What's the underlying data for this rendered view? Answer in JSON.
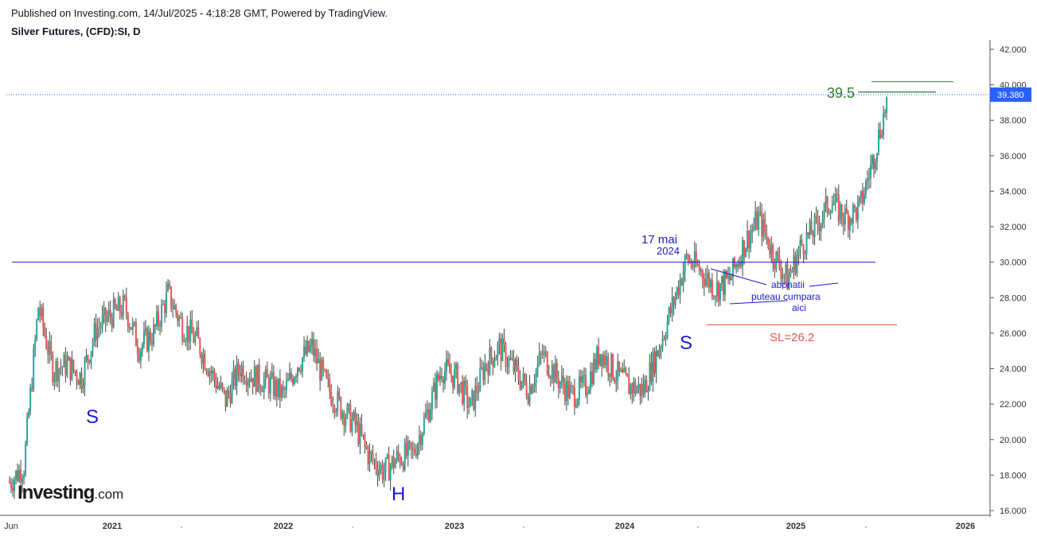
{
  "header": {
    "published": "Published on Investing.com, 14/Jul/2025 - 4:18:28 GMT, Powered by TradingView.",
    "symbol": "Silver Futures, (CFD):SI, D"
  },
  "logo": {
    "main": "Investing",
    "suffix": ".com"
  },
  "colors": {
    "up": "#26a69a",
    "down": "#ef5350",
    "candle_dark": "#3c4a3c",
    "neckline": "#1a1acd",
    "stoploss": "#ef5350",
    "target": "#2e7d32",
    "price_badge": "#2962ff",
    "axis": "#555555"
  },
  "chart_data": {
    "type": "candlestick",
    "title": "Silver Futures, (CFD):SI, D",
    "x_labels": [
      "Jun",
      "2021",
      "2022",
      "2023",
      "2024",
      "2025",
      "2026"
    ],
    "y_ticks": [
      "16.000",
      "18.000",
      "20.000",
      "22.000",
      "24.000",
      "26.000",
      "28.000",
      "30.000",
      "32.000",
      "34.000",
      "36.000",
      "38.000",
      "40.000",
      "42.000"
    ],
    "y_range": [
      16,
      42
    ],
    "last_price": "39.380",
    "series": [
      {
        "x": [
          "2020-06",
          "2020-07",
          "2020-08",
          "2020-09",
          "2020-10",
          "2020-11",
          "2020-12",
          "2021-01",
          "2021-02",
          "2021-03",
          "2021-04",
          "2021-05",
          "2021-06",
          "2021-07",
          "2021-08",
          "2021-09",
          "2021-10",
          "2021-11",
          "2021-12",
          "2022-01",
          "2022-02",
          "2022-03",
          "2022-04",
          "2022-05",
          "2022-06",
          "2022-07",
          "2022-08",
          "2022-09",
          "2022-10",
          "2022-11",
          "2022-12",
          "2023-01",
          "2023-02",
          "2023-03",
          "2023-04",
          "2023-05",
          "2023-06",
          "2023-07",
          "2023-08",
          "2023-09",
          "2023-10",
          "2023-11",
          "2023-12",
          "2024-01",
          "2024-02",
          "2024-03",
          "2024-04",
          "2024-05",
          "2024-06",
          "2024-07",
          "2024-08",
          "2024-09",
          "2024-10",
          "2024-11",
          "2024-12",
          "2025-01",
          "2025-02",
          "2025-03",
          "2025-04",
          "2025-05",
          "2025-06",
          "2025-07"
        ],
        "values": [
          17.6,
          18.5,
          27.5,
          24.0,
          24.2,
          23.5,
          26.2,
          27.0,
          27.5,
          25.2,
          26.0,
          28.2,
          26.4,
          25.6,
          23.8,
          22.2,
          24.1,
          23.5,
          23.2,
          22.5,
          24.3,
          25.2,
          23.0,
          21.8,
          20.8,
          19.0,
          18.2,
          19.0,
          19.2,
          21.5,
          24.0,
          23.5,
          21.8,
          24.2,
          25.2,
          24.0,
          22.8,
          24.8,
          23.5,
          22.5,
          23.0,
          25.0,
          23.8,
          23.0,
          22.8,
          25.0,
          27.5,
          30.2,
          29.5,
          28.5,
          29.0,
          31.0,
          32.5,
          30.5,
          29.0,
          31.0,
          32.0,
          33.5,
          32.5,
          33.0,
          36.0,
          39.4
        ]
      }
    ],
    "annotations": {
      "pattern_labels": [
        "S",
        "H",
        "S"
      ],
      "date_note": [
        "17 mai",
        "2024"
      ],
      "note": [
        "abonatii",
        "puteau cumpara",
        "aici"
      ],
      "target_label": "39.5",
      "stop_loss_label": "SL=26.2",
      "neckline_level": 30.0,
      "stop_loss_level": 26.2,
      "target_level": 39.5,
      "upper_target_level": 40.4
    },
    "grid": false,
    "legend": "none"
  }
}
